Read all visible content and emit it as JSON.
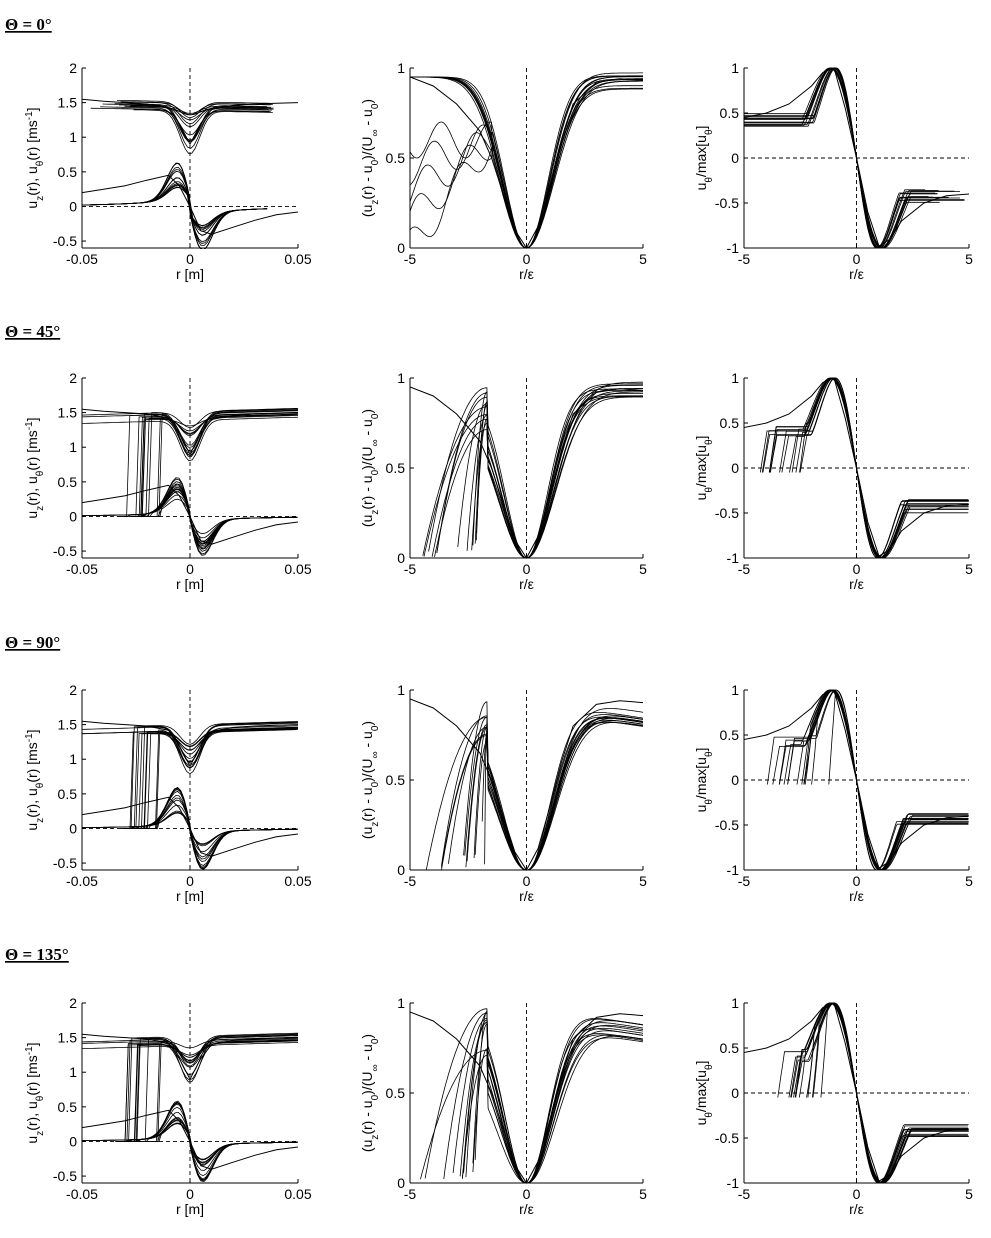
{
  "rows": [
    {
      "heading": "Θ = 0°"
    },
    {
      "heading": "Θ = 45°"
    },
    {
      "heading": "Θ = 90°"
    },
    {
      "heading": "Θ = 135°"
    }
  ],
  "chart_data": [
    {
      "type": "line",
      "panel": "velocity-vs-r",
      "xlabel": "r [m]",
      "ylabel": "u_z(r), u_θ(r) [ms^-1]",
      "xlim": [
        -0.05,
        0.05
      ],
      "ylim": [
        -0.6,
        2
      ],
      "xticks": [
        "-0.05",
        "0",
        "0.05"
      ],
      "yticks": [
        "-0.5",
        "0",
        "0.5",
        "1",
        "1.5",
        "2"
      ],
      "reference_lines": {
        "x": 0,
        "y": 0,
        "style": "dashed"
      },
      "series": [
        {
          "x": [
            -0.05,
            -0.04,
            -0.03,
            -0.02,
            -0.01,
            -0.005,
            0,
            0.005,
            0.01,
            0.02,
            0.03,
            0.04,
            0.05
          ],
          "values": [
            1.55,
            1.52,
            1.5,
            1.48,
            1.42,
            1.2,
            0.9,
            1.2,
            1.4,
            1.46,
            1.48,
            1.49,
            1.5
          ]
        },
        {
          "x": [
            -0.05,
            -0.04,
            -0.03,
            -0.02,
            -0.01,
            -0.005,
            0,
            0.005,
            0.01,
            0.02,
            0.03,
            0.04,
            0.05
          ],
          "values": [
            0.2,
            0.25,
            0.3,
            0.38,
            0.45,
            0.3,
            0,
            -0.35,
            -0.4,
            -0.3,
            -0.2,
            -0.12,
            -0.08
          ]
        }
      ]
    },
    {
      "type": "line",
      "panel": "normalized-axial-velocity",
      "xlabel": "r/ε",
      "ylabel": "(u_z(r) - u_0)/(U_∞ - u_0)",
      "xlim": [
        -5,
        5
      ],
      "ylim": [
        0,
        1
      ],
      "xticks": [
        "-5",
        "0",
        "5"
      ],
      "yticks": [
        "0",
        "0.5",
        "1"
      ],
      "reference_lines": {
        "x": 0,
        "style": "dashed"
      },
      "series": [
        {
          "x": [
            -5,
            -4,
            -3,
            -2,
            -1.5,
            -1,
            -0.5,
            0,
            0.5,
            1,
            1.5,
            2,
            3,
            4,
            5
          ],
          "values": [
            0.95,
            0.9,
            0.8,
            0.65,
            0.5,
            0.3,
            0.1,
            0,
            0.12,
            0.35,
            0.6,
            0.8,
            0.92,
            0.94,
            0.93
          ]
        }
      ]
    },
    {
      "type": "line",
      "panel": "normalized-azimuthal-velocity",
      "xlabel": "r/ε",
      "ylabel": "u_θ/max[u_θ]",
      "xlim": [
        -5,
        5
      ],
      "ylim": [
        -1,
        1
      ],
      "xticks": [
        "-5",
        "0",
        "5"
      ],
      "yticks": [
        "-1",
        "-0.5",
        "0",
        "0.5",
        "1"
      ],
      "reference_lines": {
        "x": 0,
        "y": 0,
        "style": "dashed"
      },
      "series": [
        {
          "x": [
            -5,
            -4,
            -3,
            -2,
            -1.5,
            -1,
            -0.5,
            0,
            0.5,
            1,
            1.5,
            2,
            3,
            4,
            5
          ],
          "values": [
            0.45,
            0.5,
            0.6,
            0.8,
            0.95,
            1,
            0.55,
            0,
            -0.6,
            -0.98,
            -0.9,
            -0.7,
            -0.5,
            -0.42,
            -0.4
          ]
        }
      ]
    }
  ]
}
